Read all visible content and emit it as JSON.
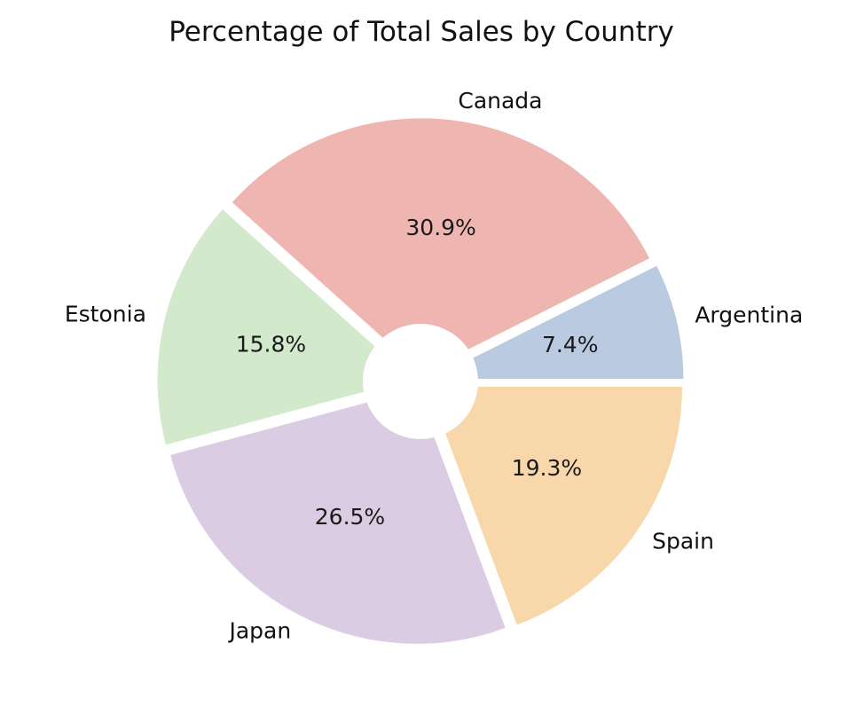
{
  "chart_data": {
    "type": "pie",
    "title": "Percentage of Total Sales by Country",
    "categories": [
      "Argentina",
      "Canada",
      "Estonia",
      "Japan",
      "Spain"
    ],
    "values": [
      7.4,
      30.9,
      15.8,
      26.5,
      19.3
    ],
    "percent_labels": [
      "7.4%",
      "30.9%",
      "15.8%",
      "26.5%",
      "19.3%"
    ],
    "colors": [
      "#bacbe1",
      "#efb5b1",
      "#d3e9cb",
      "#dccce3",
      "#f8d8ab"
    ],
    "start_angle_deg": 0,
    "direction": "counterclockwise",
    "donut_hole": true,
    "exploded": true,
    "legend": "none"
  }
}
